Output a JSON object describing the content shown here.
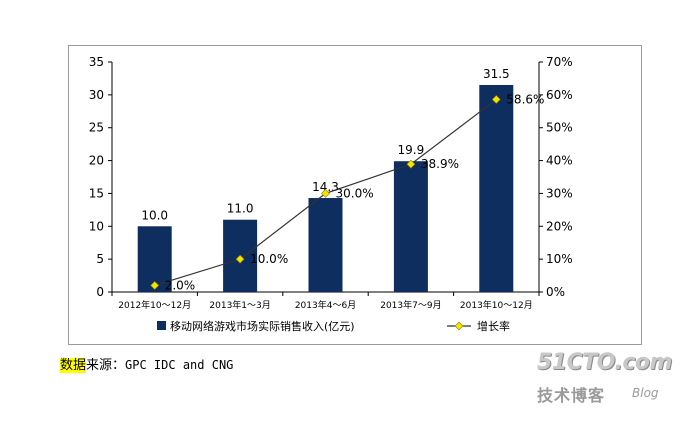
{
  "chart_data": {
    "type": "bar",
    "categories": [
      "2012年10～12月",
      "2013年1～3月",
      "2013年4～6月",
      "2013年7～9月",
      "2013年10～12月"
    ],
    "series": [
      {
        "name": "移动网络游戏市场实际销售收入(亿元)",
        "type": "bar",
        "axis": "left",
        "values": [
          10.0,
          11.0,
          14.3,
          19.9,
          31.5
        ],
        "labels": [
          "10.0",
          "11.0",
          "14.3",
          "19.9",
          "31.5"
        ],
        "color": "#0d2e5e"
      },
      {
        "name": "增长率",
        "type": "line",
        "axis": "right",
        "values": [
          2.0,
          10.0,
          30.0,
          38.9,
          58.6
        ],
        "labels": [
          "2.0%",
          "10.0%",
          "30.0%",
          "38.9%",
          "58.6%"
        ],
        "color": "#333333",
        "marker_color": "#f2e600"
      }
    ],
    "y_left": {
      "min": 0,
      "max": 35,
      "step": 5,
      "ticks": [
        "0",
        "5",
        "10",
        "15",
        "20",
        "25",
        "30",
        "35"
      ]
    },
    "y_right": {
      "min": 0,
      "max": 70,
      "step": 10,
      "ticks": [
        "0%",
        "10%",
        "20%",
        "30%",
        "40%",
        "50%",
        "60%",
        "70%"
      ]
    },
    "legend_position": "bottom",
    "grid": false
  },
  "source": {
    "highlight": "数据",
    "prefix": "来源：",
    "text": "GPC IDC and CNG"
  },
  "watermark": {
    "domain": "51CTO.com",
    "sub": "技术博客",
    "blog": "Blog"
  }
}
